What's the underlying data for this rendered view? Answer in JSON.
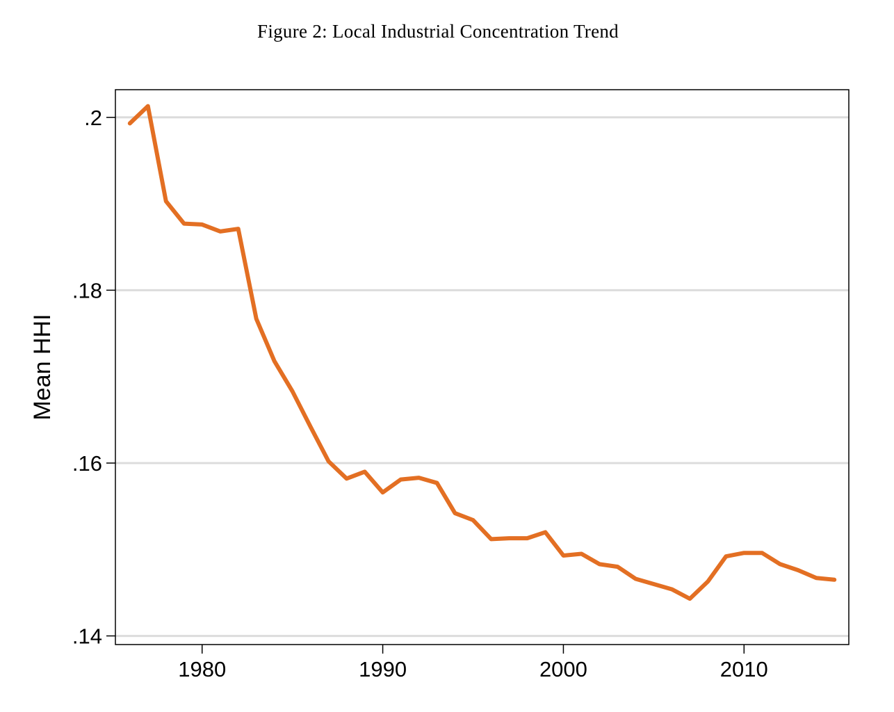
{
  "figure": {
    "title": "Figure 2: Local Industrial Concentration Trend"
  },
  "chart_data": {
    "type": "line",
    "title": "Figure 2: Local Industrial Concentration Trend",
    "xlabel": "",
    "ylabel": "Mean HHI",
    "xlim": [
      1975.2,
      2015.8
    ],
    "ylim": [
      0.139,
      0.2032
    ],
    "x_ticks": [
      1980,
      1990,
      2000,
      2010
    ],
    "x_tick_labels": [
      "1980",
      "1990",
      "2000",
      "2010"
    ],
    "y_ticks": [
      0.14,
      0.16,
      0.18,
      0.2
    ],
    "y_tick_labels": [
      ".14",
      ".16",
      ".18",
      ".2"
    ],
    "grid": "horizontal",
    "legend": "none",
    "line_color": "#e36f23",
    "series": [
      {
        "x": [
          1976,
          1977,
          1978,
          1979,
          1980,
          1981,
          1982,
          1983,
          1984,
          1985,
          1986,
          1987,
          1988,
          1989,
          1990,
          1991,
          1992,
          1993,
          1994,
          1995,
          1996,
          1997,
          1998,
          1999,
          2000,
          2001,
          2002,
          2003,
          2004,
          2005,
          2006,
          2007,
          2008,
          2009,
          2010,
          2011,
          2012,
          2013,
          2014,
          2015
        ],
        "values": [
          0.1993,
          0.2013,
          0.1903,
          0.1877,
          0.1876,
          0.1868,
          0.1871,
          0.1767,
          0.1718,
          0.1683,
          0.1642,
          0.1602,
          0.1582,
          0.159,
          0.1566,
          0.1581,
          0.1583,
          0.1577,
          0.1542,
          0.1534,
          0.1512,
          0.1513,
          0.1513,
          0.152,
          0.1493,
          0.1495,
          0.1483,
          0.148,
          0.1466,
          0.146,
          0.1454,
          0.1443,
          0.1463,
          0.1492,
          0.1496,
          0.1496,
          0.1483,
          0.1476,
          0.1467,
          0.1465
        ]
      }
    ]
  }
}
